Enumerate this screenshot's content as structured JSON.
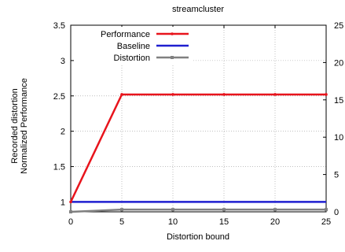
{
  "chart_data": {
    "type": "line",
    "title": "streamcluster",
    "xlabel": "Distortion bound",
    "ylabel_lines": [
      "Recorded distortion",
      "Normalized Performance"
    ],
    "x": [
      0,
      5,
      10,
      15,
      20,
      25
    ],
    "x_ticks": [
      0,
      5,
      10,
      15,
      20,
      25
    ],
    "xlim": [
      0,
      25
    ],
    "ylim": [
      0.86,
      3.5
    ],
    "y_ticks": [
      1,
      1.5,
      2,
      2.5,
      3,
      3.5
    ],
    "y_tick_labels": [
      "1",
      "1.5",
      "2",
      "2.5",
      "3",
      "3.5"
    ],
    "y2lim": [
      0,
      25
    ],
    "y2_ticks": [
      0,
      5,
      10,
      15,
      20,
      25
    ],
    "y2_tick_labels": [
      "0",
      "5",
      "10",
      "15",
      "20",
      "25"
    ],
    "grid": true,
    "legend_position": "top-left",
    "series": [
      {
        "name": "Performance",
        "axis": "left",
        "color": "#e8141c",
        "marker": "dot",
        "values": [
          1.0,
          2.52,
          2.52,
          2.52,
          2.52,
          2.52
        ]
      },
      {
        "name": "Baseline",
        "axis": "left",
        "color": "#1f1fd0",
        "marker": "none",
        "values": [
          1.0,
          1.0,
          1.0,
          1.0,
          1.0,
          1.0
        ]
      },
      {
        "name": "Distortion",
        "axis": "right",
        "color": "#808080",
        "marker": "square",
        "values": [
          0,
          0.3,
          0.3,
          0.3,
          0.3,
          0.3
        ]
      }
    ]
  }
}
